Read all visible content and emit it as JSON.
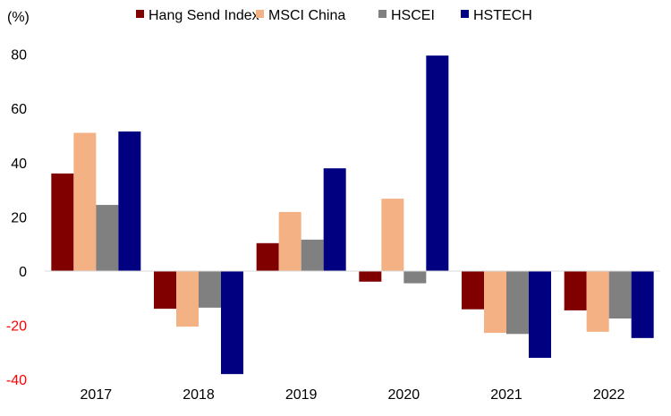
{
  "chart_data": {
    "type": "bar",
    "title": "",
    "xlabel": "",
    "ylabel": "(%)",
    "ylim": [
      -40,
      80
    ],
    "yticks": [
      -40,
      -20,
      0,
      20,
      40,
      60,
      80
    ],
    "grid": false,
    "legend_position": "top",
    "categories": [
      "2017",
      "2018",
      "2019",
      "2020",
      "2021",
      "2022"
    ],
    "series": [
      {
        "name": "Hang Send Index",
        "color": "#800000",
        "values": [
          36.0,
          -13.9,
          10.3,
          -3.9,
          -14.1,
          -14.5
        ]
      },
      {
        "name": "MSCI China",
        "color": "#F4B183",
        "values": [
          51.0,
          -20.5,
          21.8,
          26.7,
          -22.8,
          -22.4
        ]
      },
      {
        "name": "HSCEI",
        "color": "#808080",
        "values": [
          24.4,
          -13.5,
          11.6,
          -4.5,
          -23.2,
          -17.5
        ]
      },
      {
        "name": "HSTECH",
        "color": "#000080",
        "values": [
          51.5,
          -38.0,
          37.9,
          79.5,
          -32.0,
          -24.7
        ]
      }
    ],
    "negative_tick_color": "#FF0000"
  }
}
